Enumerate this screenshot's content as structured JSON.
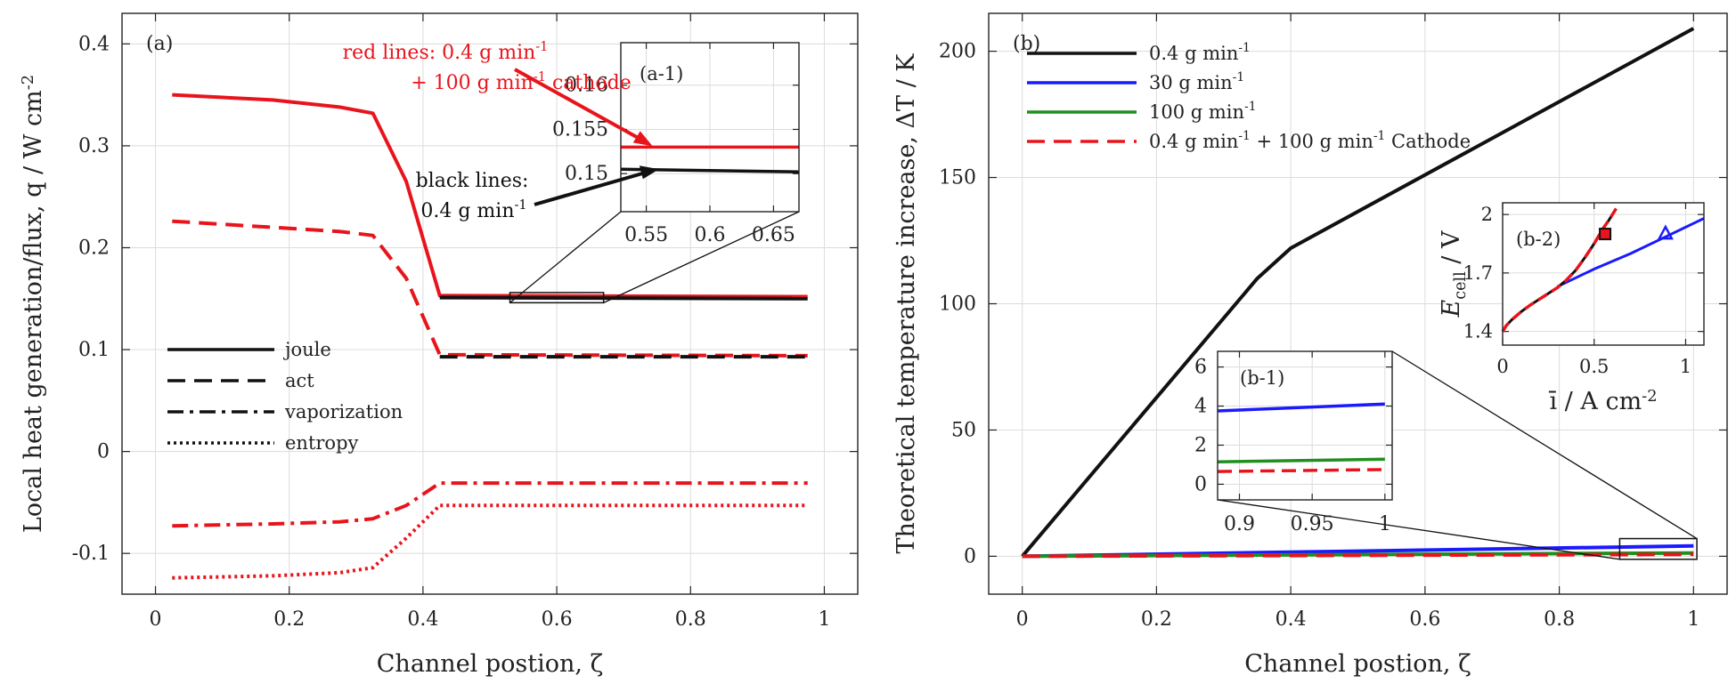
{
  "chart_data": [
    {
      "panel": "(a)",
      "type": "line",
      "xlabel": "Channel postion, ζ",
      "ylabel": "Local heat generation/flux, q / W cm⁻²",
      "xlim": [
        -0.05,
        1.05
      ],
      "ylim": [
        -0.14,
        0.43
      ],
      "xticks": [
        0,
        0.2,
        0.4,
        0.6,
        0.8,
        1
      ],
      "xtick_labels": [
        "0",
        "0.2",
        "0.4",
        "0.6",
        "0.8",
        "1"
      ],
      "yticks": [
        -0.1,
        0,
        0.1,
        0.2,
        0.3,
        0.4
      ],
      "ytick_labels": [
        "-0.1",
        "0",
        "0.1",
        "0.2",
        "0.3",
        "0.4"
      ],
      "grid": true,
      "legend": [
        "joule",
        "act",
        "vaporization",
        "entropy"
      ],
      "annotations": {
        "red": "red lines: 0.4 g min⁻¹ + 100 g min⁻¹ cathode",
        "black": "black lines: 0.4 g min⁻¹"
      },
      "series": [
        {
          "name": "joule (0.4 g min⁻¹ + 100 g min⁻¹ cathode)",
          "color": "#e8141c",
          "dash": "solid",
          "x": [
            0.025,
            0.175,
            0.275,
            0.325,
            0.375,
            0.425,
            0.975
          ],
          "y": [
            0.35,
            0.345,
            0.338,
            0.332,
            0.265,
            0.153,
            0.152
          ]
        },
        {
          "name": "joule (0.4 g min⁻¹)",
          "color": "#111111",
          "dash": "solid",
          "x": [
            0.425,
            0.975
          ],
          "y": [
            0.151,
            0.15
          ]
        },
        {
          "name": "act (0.4 g min⁻¹ + 100 g min⁻¹ cathode)",
          "color": "#e8141c",
          "dash": "dashed",
          "x": [
            0.025,
            0.175,
            0.275,
            0.325,
            0.375,
            0.425,
            0.975
          ],
          "y": [
            0.226,
            0.22,
            0.216,
            0.212,
            0.17,
            0.095,
            0.094
          ]
        },
        {
          "name": "act (0.4 g min⁻¹)",
          "color": "#111111",
          "dash": "dashed",
          "x": [
            0.425,
            0.975
          ],
          "y": [
            0.093,
            0.093
          ]
        },
        {
          "name": "vaporization",
          "color": "#e8141c",
          "dash": "dashdot",
          "x": [
            0.025,
            0.175,
            0.275,
            0.325,
            0.375,
            0.425,
            0.975
          ],
          "y": [
            -0.073,
            -0.071,
            -0.069,
            -0.066,
            -0.053,
            -0.031,
            -0.031
          ]
        },
        {
          "name": "entropy",
          "color": "#e8141c",
          "dash": "dotted",
          "x": [
            0.025,
            0.175,
            0.275,
            0.325,
            0.375,
            0.425,
            0.975
          ],
          "y": [
            -0.124,
            -0.122,
            -0.119,
            -0.114,
            -0.085,
            -0.053,
            -0.053
          ]
        }
      ],
      "inset": {
        "name": "(a-1)",
        "xlim": [
          0.53,
          0.67
        ],
        "ylim": [
          0.1457,
          0.1648
        ],
        "xticks": [
          0.55,
          0.6,
          0.65
        ],
        "xtick_labels": [
          "0.55",
          "0.6",
          "0.65"
        ],
        "yticks": [
          0.15,
          0.155,
          0.16
        ],
        "ytick_labels": [
          "0.15",
          "0.155",
          "0.16"
        ],
        "series": [
          {
            "name": "red joule",
            "color": "#e8141c",
            "x": [
              0.53,
              0.67
            ],
            "y": [
              0.153,
              0.153
            ]
          },
          {
            "name": "black joule",
            "color": "#111111",
            "x": [
              0.53,
              0.67
            ],
            "y": [
              0.1505,
              0.1502
            ]
          }
        ]
      }
    },
    {
      "panel": "(b)",
      "type": "line",
      "xlabel": "Channel postion, ζ",
      "ylabel": "Theoretical temperature increase, ΔT / K",
      "xlim": [
        -0.05,
        1.05
      ],
      "ylim": [
        -15,
        215
      ],
      "xticks": [
        0,
        0.2,
        0.4,
        0.6,
        0.8,
        1
      ],
      "xtick_labels": [
        "0",
        "0.2",
        "0.4",
        "0.6",
        "0.8",
        "1"
      ],
      "yticks": [
        0,
        50,
        100,
        150,
        200
      ],
      "ytick_labels": [
        "0",
        "50",
        "100",
        "150",
        "200"
      ],
      "grid": true,
      "legend": [
        "0.4 g min⁻¹",
        "30 g min⁻¹",
        "100 g min⁻¹",
        "0.4 g min⁻¹ + 100 g min⁻¹ Cathode"
      ],
      "series": [
        {
          "name": "0.4 g min⁻¹",
          "color": "#111111",
          "dash": "solid",
          "x": [
            0,
            0.35,
            0.4,
            1.0
          ],
          "y": [
            0,
            110,
            122,
            209
          ]
        },
        {
          "name": "30 g min⁻¹",
          "color": "#1a1aff",
          "dash": "solid",
          "x": [
            0,
            1.0
          ],
          "y": [
            0,
            4.1
          ]
        },
        {
          "name": "100 g min⁻¹",
          "color": "#1f8f1f",
          "dash": "solid",
          "x": [
            0,
            1.0
          ],
          "y": [
            0,
            1.3
          ]
        },
        {
          "name": "0.4 g min⁻¹ + 100 g min⁻¹ Cathode",
          "color": "#e8141c",
          "dash": "dashed",
          "x": [
            0,
            1.0
          ],
          "y": [
            0,
            0.75
          ]
        }
      ],
      "inset1": {
        "name": "(b-1)",
        "xlim": [
          0.885,
          1.005
        ],
        "ylim": [
          -0.8,
          6.8
        ],
        "xticks": [
          0.9,
          0.95,
          1
        ],
        "xtick_labels": [
          "0.9",
          "0.95",
          "1"
        ],
        "yticks": [
          0,
          2,
          4,
          6
        ],
        "ytick_labels": [
          "0",
          "2",
          "4",
          "6"
        ],
        "series": [
          {
            "name": "30 g min⁻¹",
            "color": "#1a1aff",
            "x": [
              0.885,
              1.0
            ],
            "y": [
              3.75,
              4.1
            ]
          },
          {
            "name": "100 g min⁻¹",
            "color": "#1f8f1f",
            "x": [
              0.885,
              1.0
            ],
            "y": [
              1.15,
              1.28
            ]
          },
          {
            "name": "cathode",
            "color": "#e8141c",
            "dash": "dashed",
            "x": [
              0.885,
              1.0
            ],
            "y": [
              0.65,
              0.75
            ]
          }
        ]
      },
      "inset2": {
        "name": "(b-2)",
        "xlabel": "ī / A cm⁻²",
        "ylabel": "Ecell / V",
        "xlim": [
          0,
          1.1
        ],
        "ylim": [
          1.33,
          2.06
        ],
        "xticks": [
          0,
          0.5,
          1
        ],
        "xtick_labels": [
          "0",
          "0.5",
          "1"
        ],
        "yticks": [
          1.4,
          1.7,
          2
        ],
        "ytick_labels": [
          "1.4",
          "1.7",
          "2"
        ],
        "series": [
          {
            "name": "30 g min⁻¹ polarization",
            "color": "#1a1aff",
            "dash": "solid",
            "x": [
              0.3,
              0.5,
              0.7,
              0.9,
              1.1
            ],
            "y": [
              1.63,
              1.72,
              1.8,
              1.89,
              1.98
            ]
          },
          {
            "name": "0.4 g min⁻¹ polarization",
            "color": "#111111",
            "dash": "solid",
            "x": [
              0,
              0.02,
              0.05,
              0.1,
              0.15,
              0.2,
              0.25,
              0.3,
              0.35,
              0.4,
              0.45,
              0.5,
              0.55,
              0.58,
              0.62
            ],
            "y": [
              1.4,
              1.43,
              1.46,
              1.5,
              1.535,
              1.565,
              1.595,
              1.625,
              1.665,
              1.715,
              1.78,
              1.85,
              1.93,
              1.97,
              2.03
            ]
          },
          {
            "name": "0.4 + 100 cathode polarization",
            "color": "#e8141c",
            "dash": "dashed",
            "x": [
              0,
              0.02,
              0.05,
              0.1,
              0.15,
              0.2,
              0.25,
              0.3,
              0.35,
              0.4,
              0.45,
              0.5,
              0.55,
              0.58,
              0.62
            ],
            "y": [
              1.4,
              1.43,
              1.46,
              1.5,
              1.535,
              1.565,
              1.595,
              1.625,
              1.665,
              1.715,
              1.78,
              1.85,
              1.93,
              1.97,
              2.03
            ]
          }
        ],
        "markers": [
          {
            "name": "square",
            "x": 0.56,
            "y": 1.9
          },
          {
            "name": "triangle",
            "x": 0.89,
            "y": 1.9
          }
        ]
      }
    }
  ]
}
